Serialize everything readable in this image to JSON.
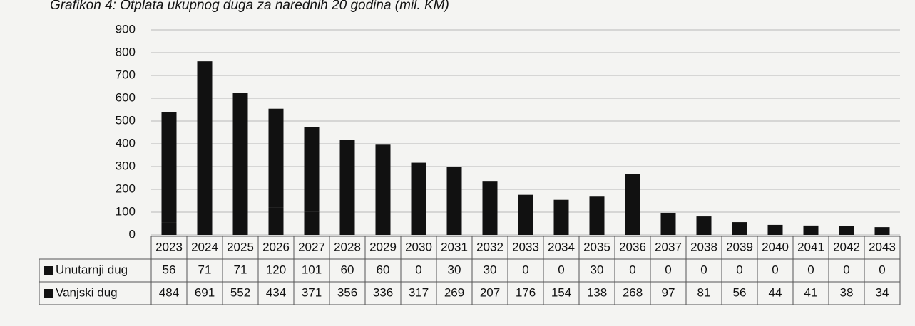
{
  "chart_data": {
    "type": "bar",
    "stacked": true,
    "title": "Grafikon 4: Otplata ukupnog duga za narednih 20 godina (mil. KM)",
    "categories": [
      "2023",
      "2024",
      "2025",
      "2026",
      "2027",
      "2028",
      "2029",
      "2030",
      "2031",
      "2032",
      "2033",
      "2034",
      "2035",
      "2036",
      "2037",
      "2038",
      "2039",
      "2040",
      "2041",
      "2042",
      "2043"
    ],
    "series": [
      {
        "name": "Unutarnji dug",
        "color": "#111111",
        "values": [
          56,
          71,
          71,
          120,
          101,
          60,
          60,
          0,
          30,
          30,
          0,
          0,
          30,
          0,
          0,
          0,
          0,
          0,
          0,
          0,
          0
        ]
      },
      {
        "name": "Vanjski dug",
        "color": "#111111",
        "values": [
          484,
          691,
          552,
          434,
          371,
          356,
          336,
          317,
          269,
          207,
          176,
          154,
          138,
          268,
          97,
          81,
          56,
          44,
          41,
          38,
          34
        ]
      }
    ],
    "ylim": [
      0,
      900
    ],
    "yticks": [
      0,
      100,
      200,
      300,
      400,
      500,
      600,
      700,
      800,
      900
    ],
    "grid": true
  }
}
